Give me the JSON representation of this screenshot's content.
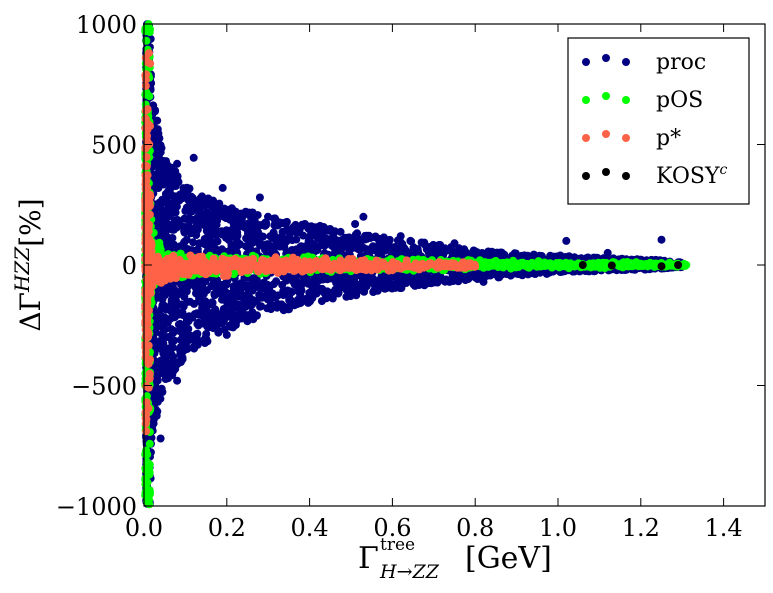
{
  "chart_data": {
    "type": "scatter",
    "title": "",
    "xlabel": {
      "base": "Γ",
      "sup": "tree",
      "sub": "H→ZZ",
      "unit": "[GeV]"
    },
    "ylabel": {
      "base": "ΔΓ",
      "sup": "HZZ",
      "unit": "[%]"
    },
    "xlim": [
      0.0,
      1.5
    ],
    "ylim": [
      -1000,
      1000
    ],
    "x_ticks": [
      0.0,
      0.2,
      0.4,
      0.6,
      0.8,
      1.0,
      1.2,
      1.4
    ],
    "x_tick_labels": [
      "0.0",
      "0.2",
      "0.4",
      "0.6",
      "0.8",
      "1.0",
      "1.2",
      "1.4"
    ],
    "y_ticks": [
      1000,
      500,
      0,
      -500,
      -1000
    ],
    "y_tick_labels": [
      "1000",
      "500",
      "0",
      "−500",
      "−1000"
    ],
    "grid": false,
    "legend_position": "top-right",
    "series": [
      {
        "name": "proc",
        "label": "proc",
        "color": "#000080",
        "envelope": {
          "x": [
            0.005,
            0.02,
            0.05,
            0.1,
            0.15,
            0.2,
            0.3,
            0.4,
            0.5,
            0.6,
            0.7,
            0.8,
            0.9,
            1.0,
            1.1,
            1.2,
            1.25,
            1.3
          ],
          "upper": [
            1000,
            700,
            450,
            330,
            280,
            250,
            200,
            170,
            140,
            110,
            90,
            60,
            50,
            40,
            30,
            25,
            20,
            10
          ],
          "lower": [
            -1000,
            -700,
            -500,
            -380,
            -320,
            -270,
            -210,
            -160,
            -130,
            -100,
            -80,
            -60,
            -45,
            -35,
            -25,
            -20,
            -15,
            -10
          ]
        },
        "highlight_points": [
          {
            "x": 0.08,
            "y": 420
          },
          {
            "x": 0.12,
            "y": 445
          },
          {
            "x": 0.19,
            "y": 320
          },
          {
            "x": 0.28,
            "y": 280
          },
          {
            "x": 0.53,
            "y": 200
          },
          {
            "x": 0.51,
            "y": 170
          },
          {
            "x": 0.62,
            "y": 120
          },
          {
            "x": 0.75,
            "y": 90
          },
          {
            "x": 1.02,
            "y": 100
          },
          {
            "x": 1.12,
            "y": 50
          },
          {
            "x": 1.25,
            "y": 105
          },
          {
            "x": 0.08,
            "y": -480
          },
          {
            "x": 0.12,
            "y": -340
          },
          {
            "x": 0.2,
            "y": -290
          },
          {
            "x": 0.34,
            "y": -180
          },
          {
            "x": 0.44,
            "y": -135
          },
          {
            "x": 0.5,
            "y": -110
          },
          {
            "x": 0.57,
            "y": -95
          },
          {
            "x": 0.67,
            "y": -70
          },
          {
            "x": 0.76,
            "y": -60
          },
          {
            "x": 0.82,
            "y": -70
          },
          {
            "x": 1.25,
            "y": -15
          },
          {
            "x": 1.3,
            "y": 5
          },
          {
            "x": 0.04,
            "y": -720
          }
        ]
      },
      {
        "name": "pOS",
        "label": "pOS",
        "color": "#00ff00",
        "envelope": {
          "x": [
            0.003,
            0.01,
            0.02,
            0.05,
            0.1,
            0.2,
            0.4,
            0.6,
            0.8,
            1.0,
            1.31
          ],
          "upper": [
            1000,
            400,
            150,
            55,
            45,
            40,
            35,
            25,
            20,
            15,
            10
          ],
          "lower": [
            -1000,
            -400,
            -110,
            -55,
            -50,
            -40,
            -30,
            -25,
            -20,
            -15,
            -10
          ]
        },
        "highlight_points": [
          {
            "x": 0.8,
            "y": 10
          },
          {
            "x": 0.9,
            "y": 5
          },
          {
            "x": 0.96,
            "y": 0
          },
          {
            "x": 1.0,
            "y": 5
          },
          {
            "x": 1.03,
            "y": 0
          },
          {
            "x": 1.05,
            "y": 0
          },
          {
            "x": 1.08,
            "y": 0
          },
          {
            "x": 1.12,
            "y": 5
          },
          {
            "x": 1.15,
            "y": 0
          },
          {
            "x": 1.2,
            "y": 0
          },
          {
            "x": 1.26,
            "y": 0
          },
          {
            "x": 1.31,
            "y": 0
          }
        ]
      },
      {
        "name": "p*",
        "label": "p*",
        "color": "#ff6347",
        "envelope": {
          "x": [
            0.003,
            0.02,
            0.05,
            0.1,
            0.2,
            0.4,
            0.6,
            0.8
          ],
          "upper": [
            880,
            60,
            45,
            40,
            35,
            30,
            20,
            15
          ],
          "lower": [
            -700,
            -90,
            -70,
            -55,
            -45,
            -35,
            -25,
            -15
          ]
        },
        "highlight_points": [
          {
            "x": 0.004,
            "y": 860
          },
          {
            "x": 0.005,
            "y": -690
          },
          {
            "x": 0.005,
            "y": -620
          }
        ]
      },
      {
        "name": "KOSY^c",
        "label": "KOSY",
        "label_sup": "c",
        "color": "#000000",
        "envelope": null,
        "highlight_points": [
          {
            "x": 1.06,
            "y": 0
          },
          {
            "x": 1.13,
            "y": -2
          },
          {
            "x": 1.25,
            "y": -5
          },
          {
            "x": 1.29,
            "y": 0
          }
        ]
      }
    ]
  }
}
